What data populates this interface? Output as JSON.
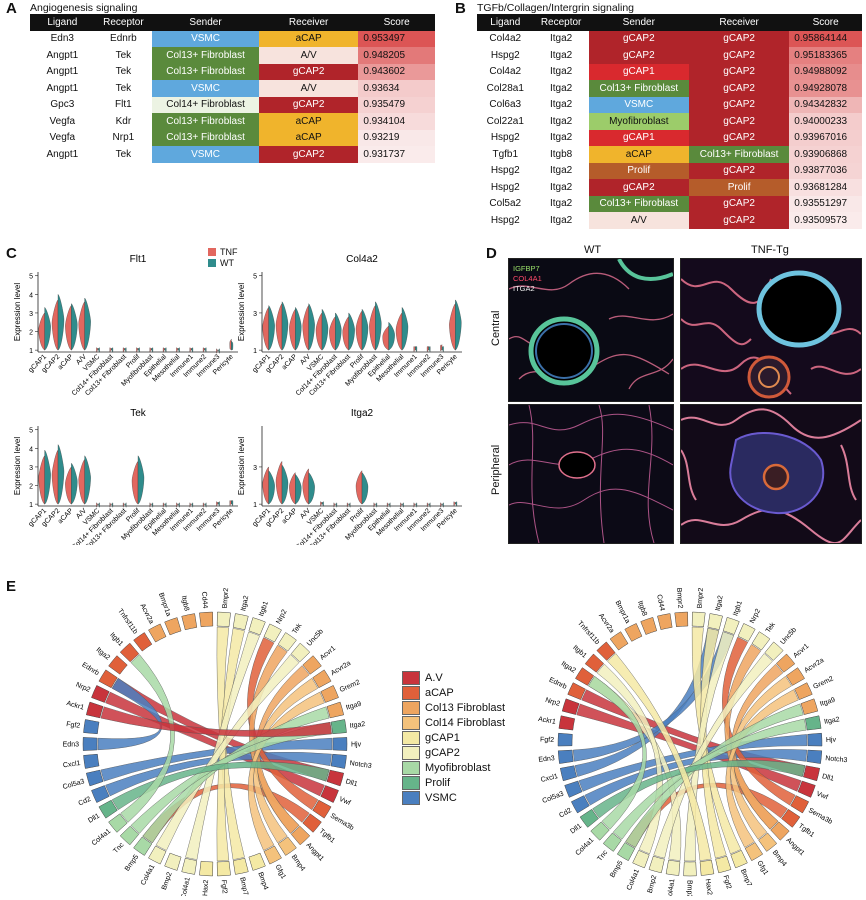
{
  "panels": {
    "a": {
      "label": "A",
      "title": "Angiogenesis signaling"
    },
    "b": {
      "label": "B",
      "title": "TGFb/Collagen/Intergrin signaling"
    },
    "c": {
      "label": "C"
    },
    "d": {
      "label": "D"
    },
    "e": {
      "label": "E"
    }
  },
  "table_headers": {
    "ligand": "Ligand",
    "receptor": "Receptor",
    "sender": "Sender",
    "receiver": "Receiver",
    "score": "Score"
  },
  "cell_colors": {
    "VSMC": "#5fa8dd",
    "aCAP": "#f0b42c",
    "A/V": "#f7e3dd",
    "gCAP2": "#b0242a",
    "gCAP1": "#d9292e",
    "Col13+ Fibroblast": "#5a8a3c",
    "Col14+ Fibroblast": "#ecf3e3",
    "Myofibroblast": "#9ccc6a",
    "Prolif": "#b55c2a"
  },
  "table_a": [
    {
      "ligand": "Edn3",
      "receptor": "Ednrb",
      "sender": "VSMC",
      "receiver": "aCAP",
      "score": "0.953497"
    },
    {
      "ligand": "Angpt1",
      "receptor": "Tek",
      "sender": "Col13+ Fibroblast",
      "receiver": "A/V",
      "score": "0.948205"
    },
    {
      "ligand": "Angpt1",
      "receptor": "Tek",
      "sender": "Col13+ Fibroblast",
      "receiver": "gCAP2",
      "score": "0.943602"
    },
    {
      "ligand": "Angpt1",
      "receptor": "Tek",
      "sender": "VSMC",
      "receiver": "A/V",
      "score": "0.93634"
    },
    {
      "ligand": "Gpc3",
      "receptor": "Flt1",
      "sender": "Col14+ Fibroblast",
      "receiver": "gCAP2",
      "score": "0.935479"
    },
    {
      "ligand": "Vegfa",
      "receptor": "Kdr",
      "sender": "Col13+ Fibroblast",
      "receiver": "aCAP",
      "score": "0.934104"
    },
    {
      "ligand": "Vegfa",
      "receptor": "Nrp1",
      "sender": "Col13+ Fibroblast",
      "receiver": "aCAP",
      "score": "0.93219"
    },
    {
      "ligand": "Angpt1",
      "receptor": "Tek",
      "sender": "VSMC",
      "receiver": "gCAP2",
      "score": "0.931737"
    }
  ],
  "table_b": [
    {
      "ligand": "Col4a2",
      "receptor": "Itga2",
      "sender": "gCAP2",
      "receiver": "gCAP2",
      "score": "0.95864144"
    },
    {
      "ligand": "Hspg2",
      "receptor": "Itga2",
      "sender": "gCAP2",
      "receiver": "gCAP2",
      "score": "0.95183365"
    },
    {
      "ligand": "Col4a2",
      "receptor": "Itga2",
      "sender": "gCAP1",
      "receiver": "gCAP2",
      "score": "0.94988092"
    },
    {
      "ligand": "Col28a1",
      "receptor": "Itga2",
      "sender": "Col13+ Fibroblast",
      "receiver": "gCAP2",
      "score": "0.94928078"
    },
    {
      "ligand": "Col6a3",
      "receptor": "Itga2",
      "sender": "VSMC",
      "receiver": "gCAP2",
      "score": "0.94342832"
    },
    {
      "ligand": "Col22a1",
      "receptor": "Itga2",
      "sender": "Myofibroblast",
      "receiver": "gCAP2",
      "score": "0.94000233"
    },
    {
      "ligand": "Hspg2",
      "receptor": "Itga2",
      "sender": "gCAP1",
      "receiver": "gCAP2",
      "score": "0.93967016"
    },
    {
      "ligand": "Tgfb1",
      "receptor": "Itgb8",
      "sender": "aCAP",
      "receiver": "Col13+ Fibroblast",
      "score": "0.93906868"
    },
    {
      "ligand": "Hspg2",
      "receptor": "Itga2",
      "sender": "Prolif",
      "receiver": "gCAP2",
      "score": "0.93877036"
    },
    {
      "ligand": "Hspg2",
      "receptor": "Itga2",
      "sender": "gCAP2",
      "receiver": "Prolif",
      "score": "0.93681284"
    },
    {
      "ligand": "Col5a2",
      "receptor": "Itga2",
      "sender": "Col13+ Fibroblast",
      "receiver": "gCAP2",
      "score": "0.93551297"
    },
    {
      "ligand": "Hspg2",
      "receptor": "Itga2",
      "sender": "A/V",
      "receiver": "gCAP2",
      "score": "0.93509573"
    }
  ],
  "violin": {
    "legend": [
      {
        "name": "TNF",
        "color": "#e2675f"
      },
      {
        "name": "WT",
        "color": "#2f8c8c"
      }
    ],
    "ylabel": "Expression level",
    "categories": [
      "gCAP1",
      "gCAP2",
      "aCAP",
      "A/V",
      "VSMC",
      "Col14+ Fibroblast",
      "Col13+ Fibroblast",
      "Prolif",
      "Myofibroblast",
      "Epithelial",
      "Mesothelial",
      "Immune1",
      "Immune2",
      "Immune3",
      "Pericyte"
    ],
    "plots": [
      {
        "gene": "Flt1",
        "yticks": [
          "5",
          "4",
          "3",
          "2",
          "1"
        ],
        "tnf": [
          3.0,
          3.7,
          3.4,
          3.6,
          1.1,
          1.1,
          1.1,
          1.1,
          1.1,
          1.1,
          1.1,
          1.1,
          1.1,
          1.0,
          1.6
        ],
        "wt": [
          3.3,
          4.0,
          3.5,
          3.8,
          1.1,
          1.1,
          1.1,
          1.1,
          1.1,
          1.1,
          1.1,
          1.1,
          1.1,
          1.0,
          1.5
        ]
      },
      {
        "gene": "Col4a2",
        "yticks": [
          "5",
          "3",
          "1"
        ],
        "tnf": [
          3.3,
          3.5,
          3.2,
          3.4,
          3.0,
          2.8,
          2.8,
          3.1,
          3.4,
          2.3,
          3.0,
          1.2,
          1.2,
          1.3,
          3.5
        ],
        "wt": [
          3.4,
          3.6,
          3.3,
          3.5,
          3.2,
          3.0,
          3.0,
          3.2,
          3.6,
          2.5,
          3.3,
          1.2,
          1.2,
          1.2,
          3.7
        ]
      },
      {
        "gene": "Tek",
        "yticks": [
          "5",
          "4",
          "3",
          "2",
          "1"
        ],
        "tnf": [
          3.6,
          3.9,
          3.0,
          3.4,
          1.0,
          1.0,
          1.0,
          3.3,
          1.0,
          1.0,
          1.0,
          1.0,
          1.0,
          1.1,
          1.2
        ],
        "wt": [
          3.9,
          4.2,
          3.2,
          3.6,
          1.0,
          1.0,
          1.0,
          3.6,
          1.0,
          1.0,
          1.0,
          1.0,
          1.0,
          1.1,
          1.2
        ]
      },
      {
        "gene": "Itga2",
        "yticks": [
          "3",
          "1"
        ],
        "tnf": [
          3.0,
          3.3,
          2.7,
          2.9,
          1.1,
          1.0,
          1.0,
          2.8,
          1.0,
          1.0,
          1.0,
          1.0,
          1.0,
          1.0,
          1.1
        ],
        "wt": [
          2.8,
          3.1,
          2.6,
          2.7,
          1.1,
          1.0,
          1.0,
          2.7,
          1.0,
          1.0,
          1.0,
          1.0,
          1.0,
          1.0,
          1.1
        ]
      }
    ]
  },
  "micro": {
    "columns": [
      "WT",
      "TNF-Tg"
    ],
    "rows": [
      "Central",
      "Peripheral"
    ],
    "legend": [
      {
        "name": "IGFBP7",
        "color": "#9be06a"
      },
      {
        "name": "COL4A1",
        "color": "#ff4b6a"
      },
      {
        "name": "ITGA2",
        "color": "#eeeeee"
      }
    ]
  },
  "chord": {
    "legend": [
      {
        "name": "A.V",
        "color": "#c8343c"
      },
      {
        "name": "aCAP",
        "color": "#e0603a"
      },
      {
        "name": "Col13 Fibroblast",
        "color": "#eea560"
      },
      {
        "name": "Col14 Fibroblast",
        "color": "#f4c27c"
      },
      {
        "name": "gCAP1",
        "color": "#f4e9a4"
      },
      {
        "name": "gCAP2",
        "color": "#f2f0be"
      },
      {
        "name": "Myofibroblast",
        "color": "#a8d9a6"
      },
      {
        "name": "Prolif",
        "color": "#66b48a"
      },
      {
        "name": "VSMC",
        "color": "#4a7fbf"
      }
    ],
    "left_genes": [
      {
        "name": "Bmpr2",
        "color": "#f2f0be"
      },
      {
        "name": "Itga2",
        "color": "#f2f0be"
      },
      {
        "name": "Itgb1",
        "color": "#f2f0be"
      },
      {
        "name": "Nrp2",
        "color": "#f2f0be"
      },
      {
        "name": "Tek",
        "color": "#f2f0be"
      },
      {
        "name": "Unc5b",
        "color": "#f2f0be"
      },
      {
        "name": "Acvr1",
        "color": "#eea560"
      },
      {
        "name": "Acvr2a",
        "color": "#eea560"
      },
      {
        "name": "Grem2",
        "color": "#eea560"
      },
      {
        "name": "Itga9",
        "color": "#eea560"
      },
      {
        "name": "Itga2",
        "color": "#66b48a"
      },
      {
        "name": "Hjv",
        "color": "#4a7fbf"
      },
      {
        "name": "Notch3",
        "color": "#4a7fbf"
      },
      {
        "name": "Dll1",
        "color": "#c8343c"
      },
      {
        "name": "Vwf",
        "color": "#c8343c"
      },
      {
        "name": "Sema3b",
        "color": "#e0603a"
      },
      {
        "name": "Tgfb1",
        "color": "#e0603a"
      },
      {
        "name": "Angpt1",
        "color": "#eea560"
      },
      {
        "name": "Bmp4",
        "color": "#f4c27c"
      },
      {
        "name": "Gfg1",
        "color": "#f4c27c"
      },
      {
        "name": "Bmp4",
        "color": "#f4e9a4"
      },
      {
        "name": "Bmp7",
        "color": "#f4e9a4"
      },
      {
        "name": "Fgf2",
        "color": "#f4e9a4"
      },
      {
        "name": "Hax2",
        "color": "#f4e9a4"
      },
      {
        "name": "Col4a1",
        "color": "#f2f0be"
      },
      {
        "name": "Bmp2",
        "color": "#f2f0be"
      },
      {
        "name": "Col4a1",
        "color": "#f2f0be"
      },
      {
        "name": "Bmp5",
        "color": "#a8d9a6"
      },
      {
        "name": "Tnc",
        "color": "#a8d9a6"
      },
      {
        "name": "Col4a1",
        "color": "#a8d9a6"
      },
      {
        "name": "Dll1",
        "color": "#66b48a"
      },
      {
        "name": "Cd2",
        "color": "#4a7fbf"
      },
      {
        "name": "Col5a3",
        "color": "#4a7fbf"
      },
      {
        "name": "Cxcl1",
        "color": "#4a7fbf"
      },
      {
        "name": "Edn3",
        "color": "#4a7fbf"
      },
      {
        "name": "Fgf2",
        "color": "#4a7fbf"
      },
      {
        "name": "Ackr1",
        "color": "#c8343c"
      },
      {
        "name": "Nrp2",
        "color": "#c8343c"
      },
      {
        "name": "Ednrb",
        "color": "#e0603a"
      },
      {
        "name": "Itga2",
        "color": "#e0603a"
      },
      {
        "name": "Itgb1",
        "color": "#e0603a"
      },
      {
        "name": "Tnfrsf11b",
        "color": "#e0603a"
      },
      {
        "name": "Acvr2a",
        "color": "#eea560"
      },
      {
        "name": "Bmpr1a",
        "color": "#eea560"
      },
      {
        "name": "Itgb8",
        "color": "#eea560"
      },
      {
        "name": "Cd44",
        "color": "#eea560"
      }
    ],
    "right_genes": [
      {
        "name": "Bmpr2",
        "color": "#f2f0be"
      },
      {
        "name": "Itga2",
        "color": "#f2f0be"
      },
      {
        "name": "Itgb1",
        "color": "#f2f0be"
      },
      {
        "name": "Nrp2",
        "color": "#f2f0be"
      },
      {
        "name": "Tek",
        "color": "#f2f0be"
      },
      {
        "name": "Unc5b",
        "color": "#f2f0be"
      },
      {
        "name": "Acvr1",
        "color": "#eea560"
      },
      {
        "name": "Acvr2a",
        "color": "#eea560"
      },
      {
        "name": "Grem2",
        "color": "#eea560"
      },
      {
        "name": "Itga9",
        "color": "#eea560"
      },
      {
        "name": "Itga2",
        "color": "#66b48a"
      },
      {
        "name": "Hjv",
        "color": "#4a7fbf"
      },
      {
        "name": "Notch3",
        "color": "#4a7fbf"
      },
      {
        "name": "Dll1",
        "color": "#c8343c"
      },
      {
        "name": "Vwf",
        "color": "#c8343c"
      },
      {
        "name": "Sema3b",
        "color": "#e0603a"
      },
      {
        "name": "Tgfb1",
        "color": "#e0603a"
      },
      {
        "name": "Angpt1",
        "color": "#eea560"
      },
      {
        "name": "Bmp4",
        "color": "#f4c27c"
      },
      {
        "name": "Gfg1",
        "color": "#f4c27c"
      },
      {
        "name": "Bmp7",
        "color": "#f4e9a4"
      },
      {
        "name": "Fgf2",
        "color": "#f4e9a4"
      },
      {
        "name": "Hax2",
        "color": "#f4e9a4"
      },
      {
        "name": "Bmp2",
        "color": "#f2f0be"
      },
      {
        "name": "Col4a1",
        "color": "#f2f0be"
      },
      {
        "name": "Bmp2",
        "color": "#f2f0be"
      },
      {
        "name": "Col4a1",
        "color": "#f2f0be"
      },
      {
        "name": "Bmp5",
        "color": "#a8d9a6"
      },
      {
        "name": "Tnc",
        "color": "#a8d9a6"
      },
      {
        "name": "Col4a1",
        "color": "#a8d9a6"
      },
      {
        "name": "Dll1",
        "color": "#66b48a"
      },
      {
        "name": "Cd2",
        "color": "#4a7fbf"
      },
      {
        "name": "Col5a3",
        "color": "#4a7fbf"
      },
      {
        "name": "Cxcl1",
        "color": "#4a7fbf"
      },
      {
        "name": "Edn3",
        "color": "#4a7fbf"
      },
      {
        "name": "Fgf2",
        "color": "#4a7fbf"
      },
      {
        "name": "Ackr1",
        "color": "#c8343c"
      },
      {
        "name": "Nrp2",
        "color": "#c8343c"
      },
      {
        "name": "Ednrb",
        "color": "#e0603a"
      },
      {
        "name": "Itga2",
        "color": "#e0603a"
      },
      {
        "name": "Itgb1",
        "color": "#e0603a"
      },
      {
        "name": "Tnfrsf11b",
        "color": "#e0603a"
      },
      {
        "name": "Acvr2a",
        "color": "#eea560"
      },
      {
        "name": "Bmpr1a",
        "color": "#eea560"
      },
      {
        "name": "Itgb8",
        "color": "#eea560"
      },
      {
        "name": "Cd44",
        "color": "#eea560"
      },
      {
        "name": "Bmpr2",
        "color": "#eea560"
      }
    ]
  }
}
